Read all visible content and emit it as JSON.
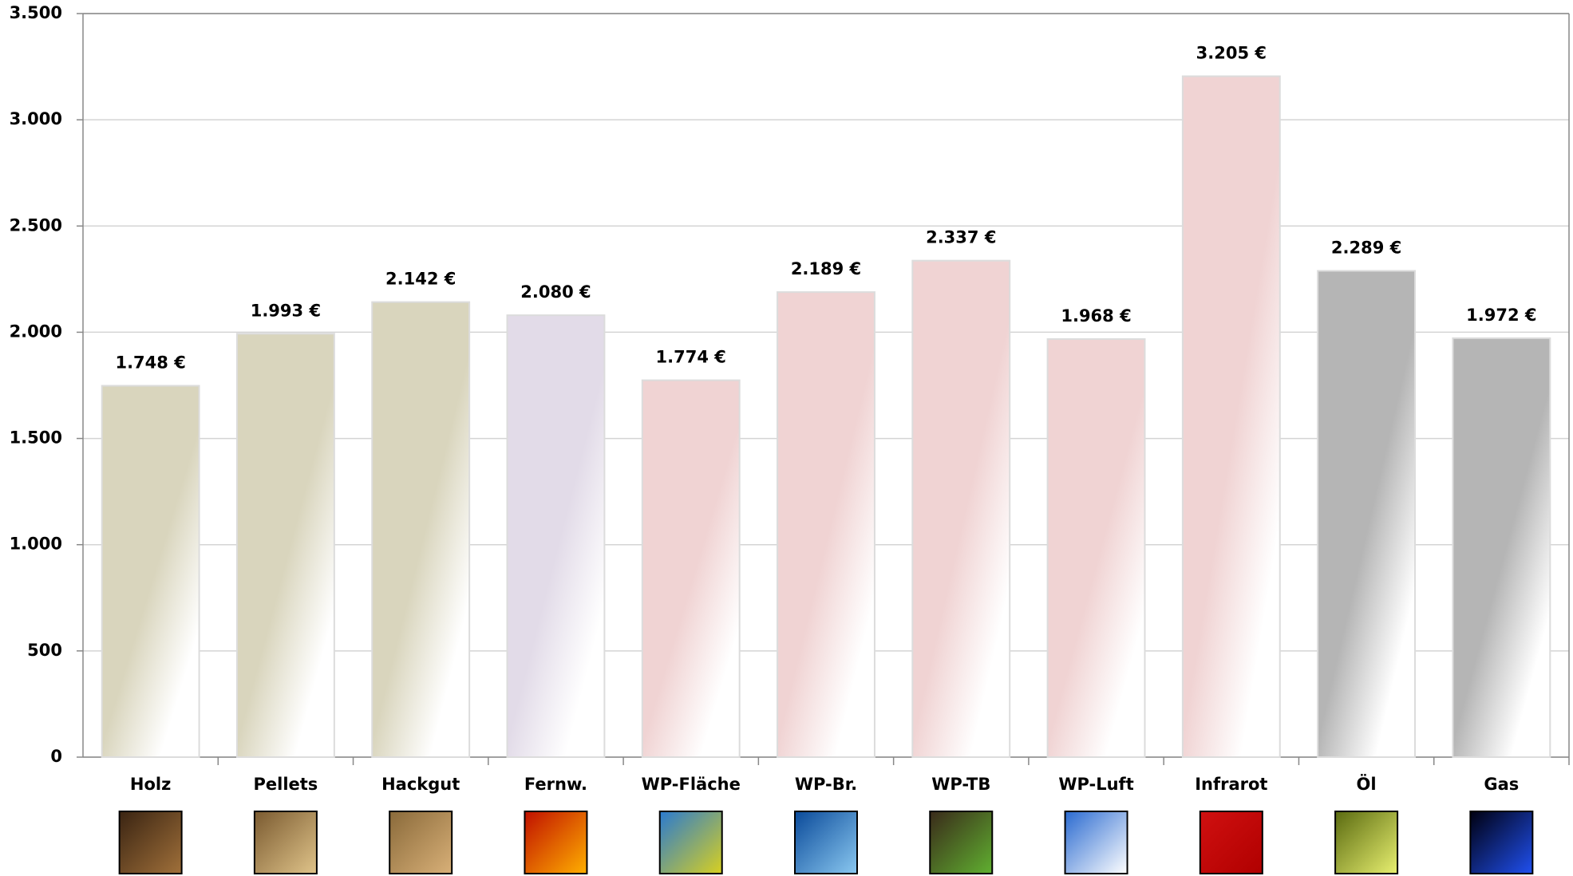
{
  "chart_data": {
    "type": "bar",
    "categories": [
      "Holz",
      "Pellets",
      "Hackgut",
      "Fernw.",
      "WP-Fläche",
      "WP-Br.",
      "WP-TB",
      "WP-Luft",
      "Infrarot",
      "Öl",
      "Gas"
    ],
    "values": [
      1748,
      1993,
      2142,
      2080,
      1774,
      2189,
      2337,
      1968,
      3205,
      2289,
      1972
    ],
    "value_labels": [
      "1.748 €",
      "1.993 €",
      "2.142 €",
      "2.080 €",
      "1.774 €",
      "2.189 €",
      "2.337 €",
      "1.968 €",
      "3.205 €",
      "2.289 €",
      "1.972 €"
    ],
    "colors": [
      "#d9d5bd",
      "#d9d5bd",
      "#d9d5bd",
      "#e2dbe8",
      "#f0d3d3",
      "#f0d3d3",
      "#f0d3d3",
      "#f0d3d3",
      "#f0d3d3",
      "#b5b5b5",
      "#b5b5b5"
    ],
    "ylim": [
      0,
      3500
    ],
    "yticks": [
      0,
      {
        "value": 500,
        "label": "500"
      },
      {
        "value": 1000,
        "label": "1.000"
      },
      {
        "value": 1500,
        "label": "1.500"
      },
      {
        "value": 2000,
        "label": "2.000"
      },
      {
        "value": 2500,
        "label": "2.500"
      },
      {
        "value": 3000,
        "label": "3.000"
      },
      {
        "value": 3500,
        "label": "3.500"
      }
    ],
    "grid": true
  }
}
